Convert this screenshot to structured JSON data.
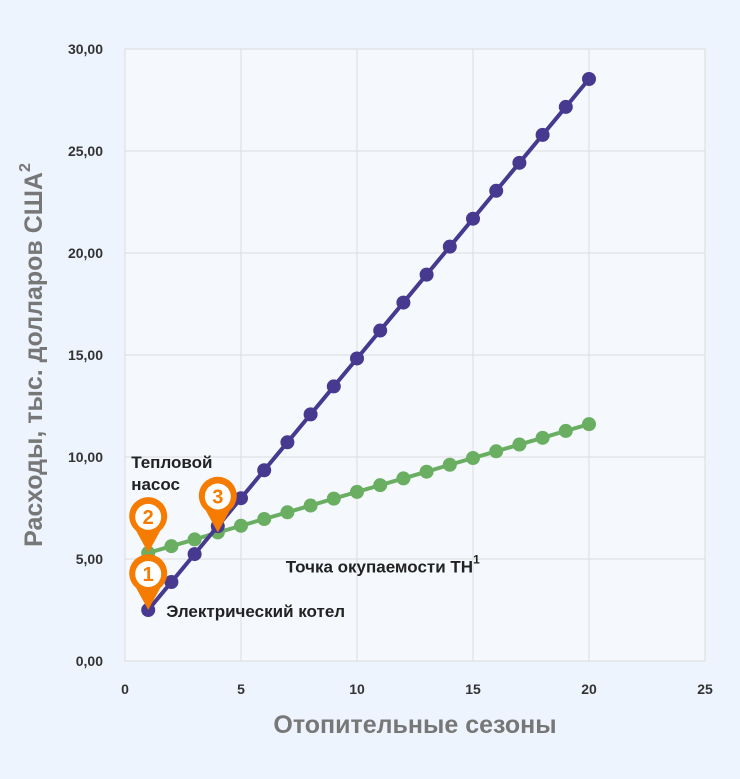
{
  "chart_data": {
    "type": "line",
    "title": "",
    "xlabel": "Отопительные сезоны",
    "ylabel": "Расходы, тыс. долларов США",
    "ylabel_superscript": "2",
    "xlim": [
      0,
      25
    ],
    "ylim": [
      0,
      30
    ],
    "xticks": [
      "0",
      "5",
      "10",
      "15",
      "20",
      "25"
    ],
    "yticks": [
      "0,00",
      "5,00",
      "10,00",
      "15,00",
      "20,00",
      "25,00",
      "30,00"
    ],
    "grid": true,
    "x": [
      1,
      2,
      3,
      4,
      5,
      6,
      7,
      8,
      9,
      10,
      11,
      12,
      13,
      14,
      15,
      16,
      17,
      18,
      19,
      20
    ],
    "series": [
      {
        "name": "Электрический котел",
        "color": "#46398f",
        "values": [
          2.5,
          3.87,
          5.24,
          6.61,
          7.98,
          9.35,
          10.72,
          12.09,
          13.46,
          14.83,
          16.2,
          17.57,
          18.94,
          20.31,
          21.68,
          23.05,
          24.42,
          25.79,
          27.16,
          28.53
        ]
      },
      {
        "name": "Тепловой насос",
        "color": "#6aae62",
        "values": [
          5.3,
          5.63,
          5.96,
          6.3,
          6.63,
          6.96,
          7.29,
          7.62,
          7.96,
          8.29,
          8.62,
          8.95,
          9.28,
          9.62,
          9.95,
          10.28,
          10.61,
          10.94,
          11.28,
          11.61
        ]
      }
    ],
    "annotations": [
      {
        "marker": "1",
        "text": "Электрический котел",
        "x": 1,
        "y": 2.5
      },
      {
        "marker": "2",
        "text": "Тепловой насос",
        "x": 1,
        "y": 5.3
      },
      {
        "marker": "3",
        "text": "Точка окупаемости ТН",
        "superscript": "1",
        "x": 4,
        "y": 6.3
      }
    ],
    "marker_color": "#f57c00"
  }
}
